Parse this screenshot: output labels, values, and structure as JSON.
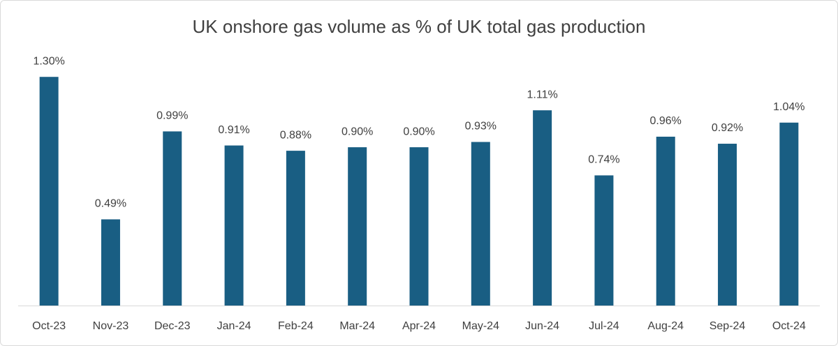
{
  "chart_data": {
    "type": "bar",
    "title": "UK onshore gas volume as % of UK total gas production",
    "categories": [
      "Oct-23",
      "Nov-23",
      "Dec-23",
      "Jan-24",
      "Feb-24",
      "Mar-24",
      "Apr-24",
      "May-24",
      "Jun-24",
      "Jul-24",
      "Aug-24",
      "Sep-24",
      "Oct-24"
    ],
    "values": [
      1.3,
      0.49,
      0.99,
      0.91,
      0.88,
      0.9,
      0.9,
      0.93,
      1.11,
      0.74,
      0.96,
      0.92,
      1.04
    ],
    "value_labels": [
      "1.30%",
      "0.49%",
      "0.99%",
      "0.91%",
      "0.88%",
      "0.90%",
      "0.90%",
      "0.93%",
      "1.11%",
      "0.74%",
      "0.96%",
      "0.92%",
      "1.04%"
    ],
    "color": "#195e83",
    "ylim": [
      0,
      1.4
    ]
  }
}
